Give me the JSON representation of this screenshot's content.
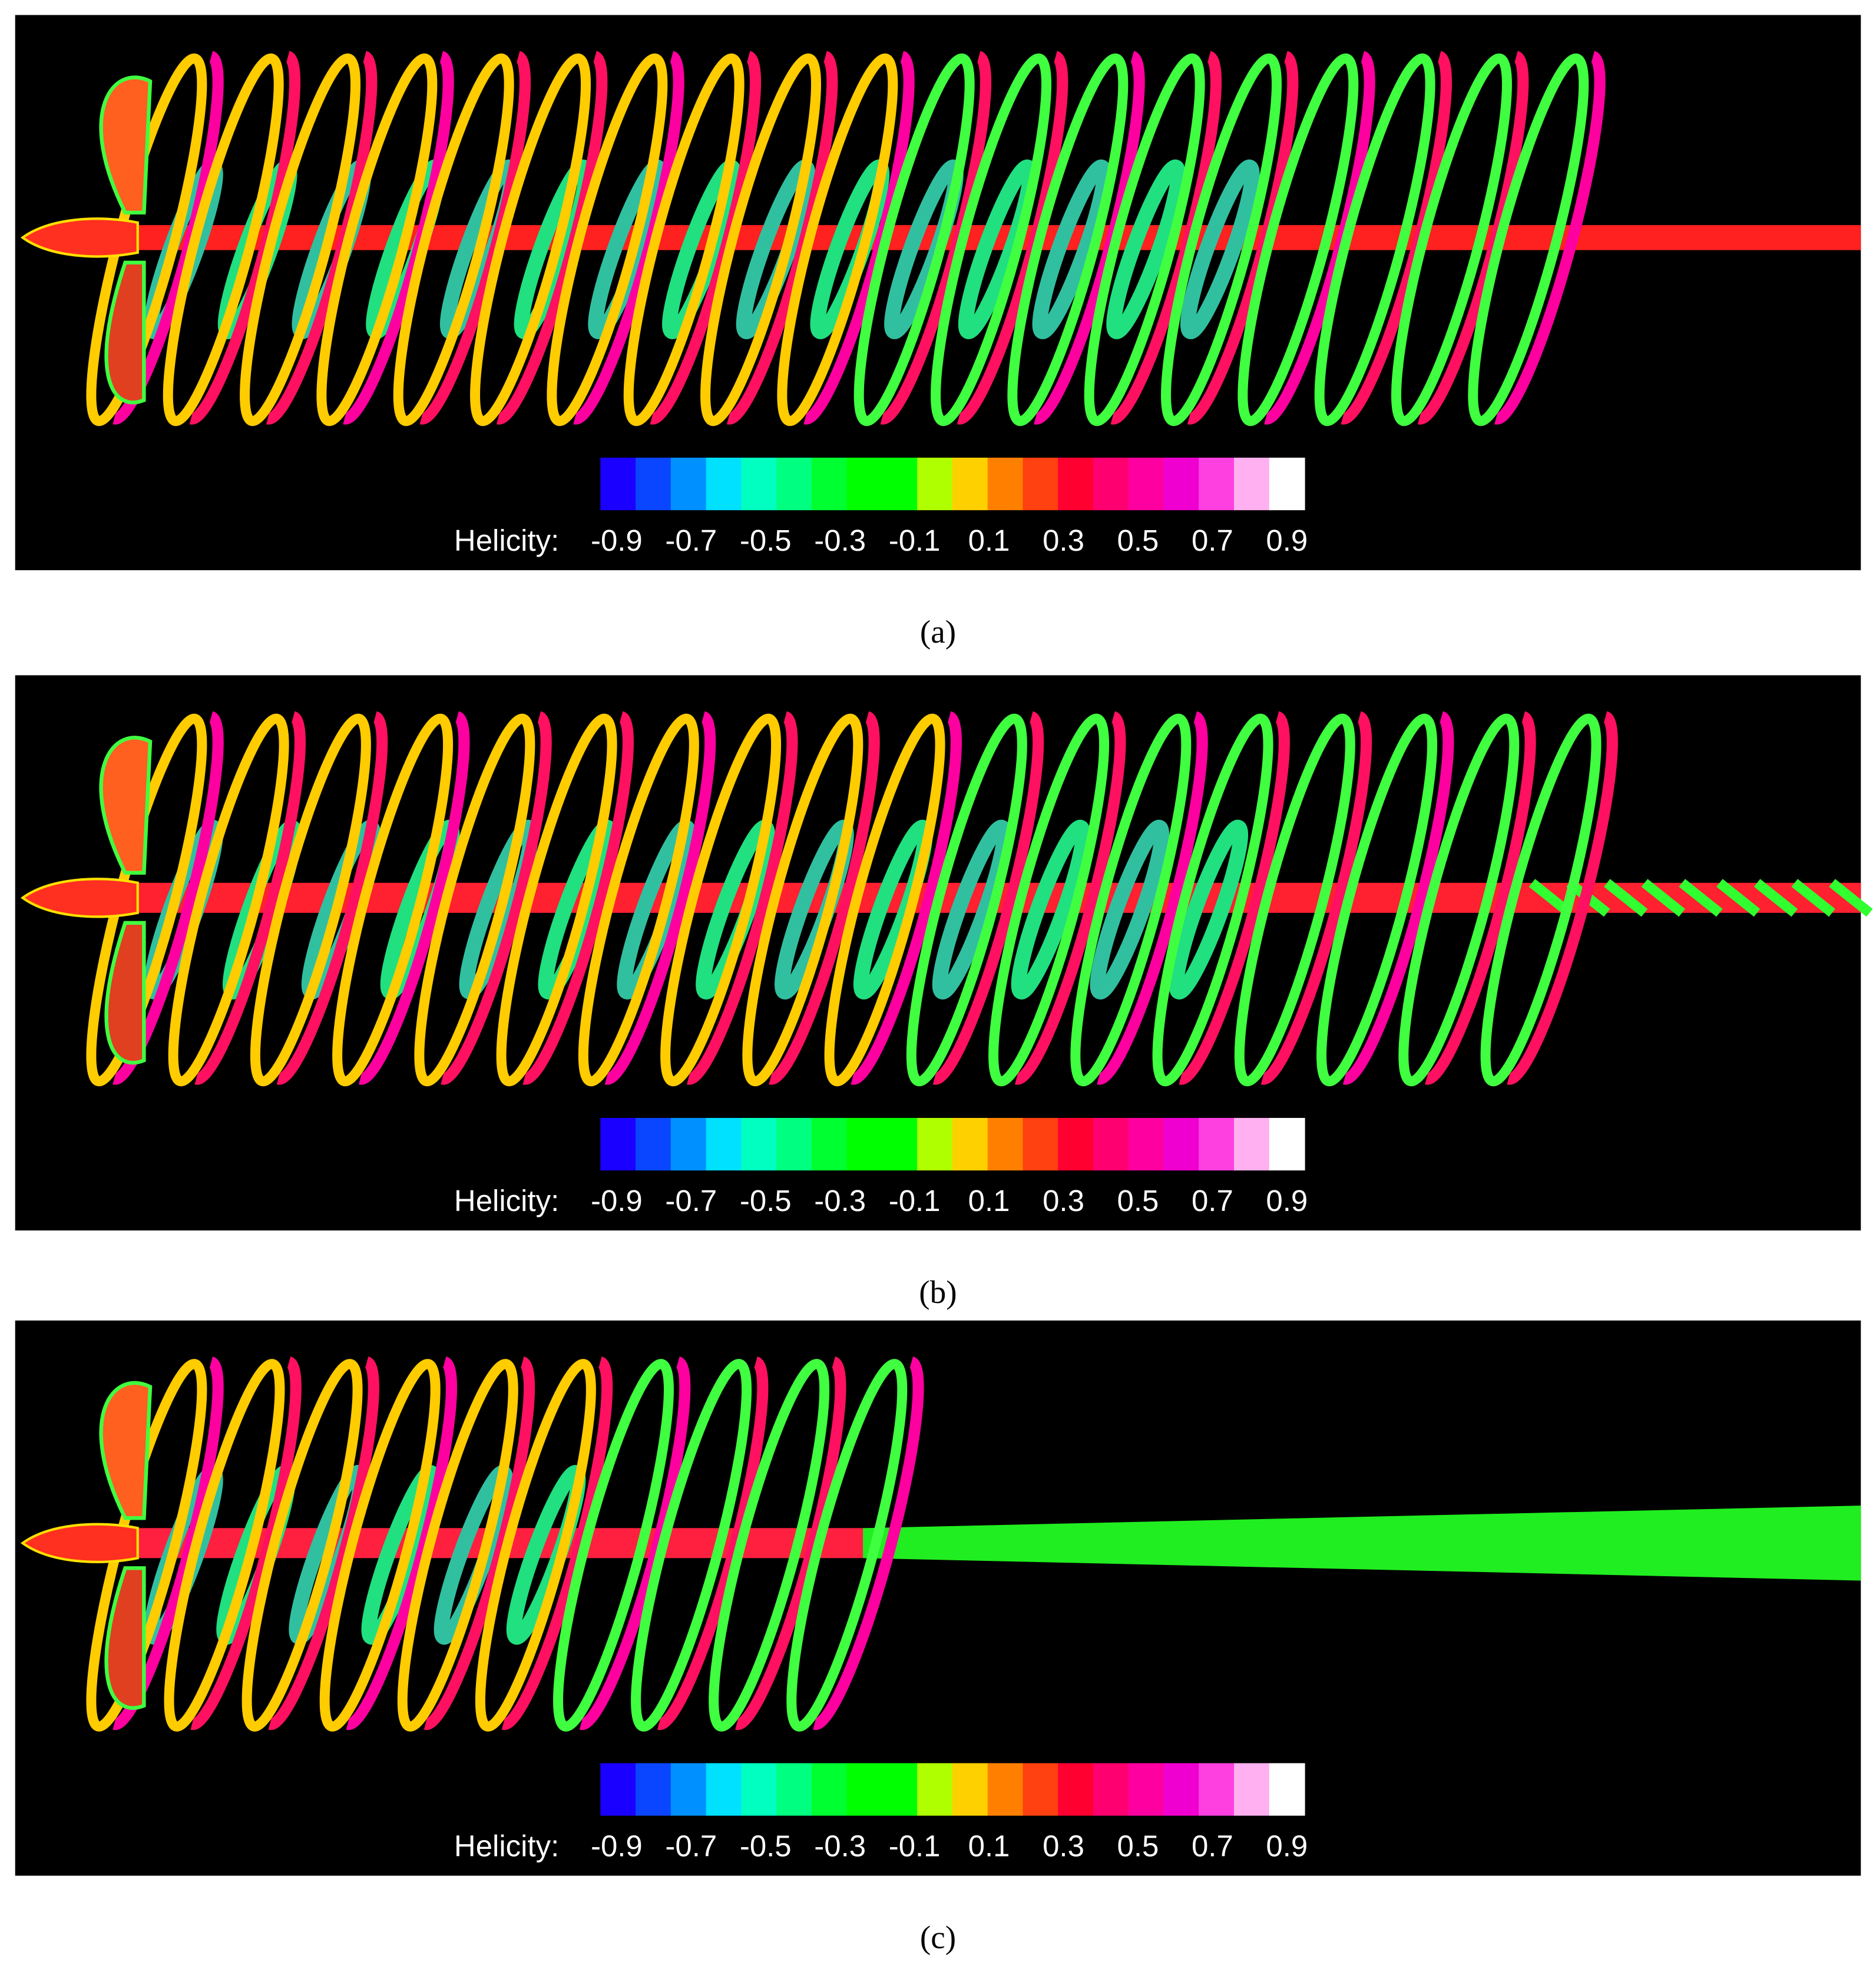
{
  "panels": [
    {
      "caption": "(a)",
      "colorbar": {
        "title": "Helicity:",
        "ticks": [
          -0.9,
          -0.7,
          -0.5,
          -0.3,
          -0.1,
          0.1,
          0.3,
          0.5,
          0.7,
          0.9
        ]
      }
    },
    {
      "caption": "(b)",
      "colorbar": {
        "title": "Helicity:",
        "ticks": [
          -0.9,
          -0.7,
          -0.5,
          -0.3,
          -0.1,
          0.1,
          0.3,
          0.5,
          0.7,
          0.9
        ]
      }
    },
    {
      "caption": "(c)",
      "colorbar": {
        "title": "Helicity:",
        "ticks": [
          -0.9,
          -0.7,
          -0.5,
          -0.3,
          -0.1,
          0.1,
          0.3,
          0.5,
          0.7,
          0.9
        ]
      }
    }
  ],
  "colorbar_colors": [
    "#1a00ff",
    "#0a46ff",
    "#0090ff",
    "#00e0ff",
    "#00ffc0",
    "#00ff80",
    "#00ff30",
    "#00ff00",
    "#00ff00",
    "#b0ff00",
    "#ffd000",
    "#ff8000",
    "#ff4010",
    "#ff0030",
    "#ff0070",
    "#ff00a0",
    "#f000d0",
    "#ff40e0",
    "#ffb0f0",
    "#ffffff"
  ]
}
